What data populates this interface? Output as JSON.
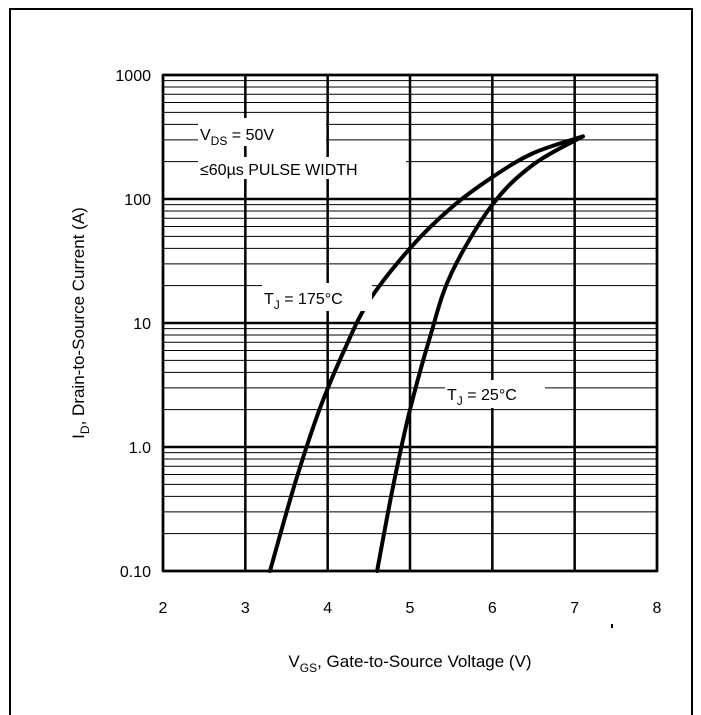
{
  "chart_data": {
    "type": "line",
    "xlabel": {
      "main": "V",
      "sub": "GS",
      "rest": ", Gate-to-Source Voltage (V)"
    },
    "ylabel": {
      "main": "I",
      "sub": "D",
      "rest": ", Drain-to-Source Current (A)"
    },
    "xlim": [
      2,
      8
    ],
    "ylim": [
      0.1,
      1000
    ],
    "yscale": "log",
    "x_ticks": [
      "2",
      "3",
      "4",
      "5",
      "6",
      "7",
      "8"
    ],
    "x_tick_values": [
      2,
      3,
      4,
      5,
      6,
      7,
      8
    ],
    "y_ticks": [
      "0.10",
      "1.0",
      "10",
      "100",
      "1000"
    ],
    "y_tick_values": [
      0.1,
      1,
      10,
      100,
      1000
    ],
    "grid": true,
    "annotations": {
      "vds": {
        "main": "V",
        "sub": "DS",
        "rest": " = 50V"
      },
      "pulse": "≤60µs PULSE WIDTH",
      "tj175": {
        "main": "T",
        "sub": "J",
        "rest": " = 175°C"
      },
      "tj25": {
        "main": "T",
        "sub": "J",
        "rest": " = 25°C"
      }
    },
    "series": [
      {
        "label_ref": "tj175",
        "points": [
          [
            3.3,
            0.1
          ],
          [
            3.6,
            0.5
          ],
          [
            3.9,
            2
          ],
          [
            4.2,
            6
          ],
          [
            4.5,
            15
          ],
          [
            5.0,
            40
          ],
          [
            5.5,
            85
          ],
          [
            6.0,
            150
          ],
          [
            6.5,
            235
          ],
          [
            7.1,
            320
          ]
        ]
      },
      {
        "label_ref": "tj25",
        "points": [
          [
            4.6,
            0.1
          ],
          [
            4.8,
            0.5
          ],
          [
            5.0,
            2
          ],
          [
            5.25,
            8
          ],
          [
            5.5,
            25
          ],
          [
            6.0,
            90
          ],
          [
            6.5,
            190
          ],
          [
            7.1,
            320
          ]
        ]
      }
    ]
  }
}
